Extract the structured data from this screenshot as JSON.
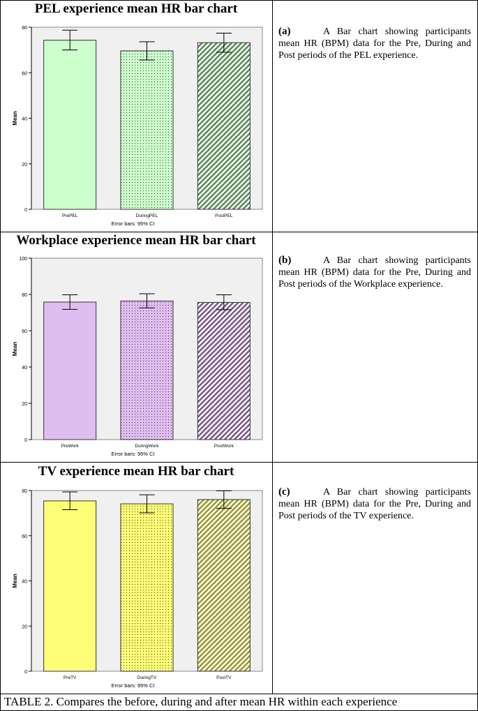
{
  "panels": [
    {
      "title": "PEL experience mean HR bar chart",
      "caption_tag": "(a)",
      "caption_text": "A Bar chart showing participants mean HR (BPM) data for the Pre, During and Post periods of the PEL experience.",
      "chart_data": {
        "type": "bar",
        "categories": [
          "PrePEL",
          "DuringPEL",
          "PostPEL"
        ],
        "values": [
          74.3,
          69.6,
          73.2
        ],
        "ci_low": [
          70.0,
          65.6,
          69.0
        ],
        "ci_high": [
          78.7,
          73.6,
          77.4
        ],
        "ylabel": "Mean",
        "xlabel": "Error bars: 95% CI",
        "ylim": [
          0,
          80
        ],
        "yticks": [
          0,
          20,
          40,
          60,
          80
        ],
        "fills": [
          "solid",
          "dots",
          "hatch"
        ],
        "colors": [
          "#ccffcc",
          "#ccffcc",
          "#5c8a5c"
        ]
      }
    },
    {
      "title": "Workplace experience mean HR bar chart",
      "caption_tag": "(b)",
      "caption_text": "A Bar chart showing participants mean HR (BPM) data for the Pre, During and Post periods of the Workplace experience.",
      "chart_data": {
        "type": "bar",
        "categories": [
          "PreWork",
          "DuringWork",
          "PostWork"
        ],
        "values": [
          75.8,
          76.4,
          75.6
        ],
        "ci_low": [
          71.8,
          72.6,
          71.6
        ],
        "ci_high": [
          79.8,
          80.4,
          79.8
        ],
        "ylabel": "Mean",
        "xlabel": "Error bars: 95% CI",
        "ylim": [
          0,
          100
        ],
        "yticks": [
          0,
          20,
          40,
          60,
          80,
          100
        ],
        "fills": [
          "solid",
          "dots",
          "hatch"
        ],
        "colors": [
          "#e0bdf0",
          "#e0bdf0",
          "#7a5a8a"
        ]
      }
    },
    {
      "title": "TV experience mean HR bar chart",
      "caption_tag": "(c)",
      "caption_text": "A Bar chart showing participants mean HR (BPM) data for the Pre, During and Post periods of the TV experience.",
      "chart_data": {
        "type": "bar",
        "categories": [
          "PreTV",
          "DuringTV",
          "PostTV"
        ],
        "values": [
          75.4,
          74.1,
          76.0
        ],
        "ci_low": [
          71.5,
          70.1,
          72.1
        ],
        "ci_high": [
          79.4,
          78.1,
          79.9
        ],
        "ylabel": "Mean",
        "xlabel": "Error bars: 95% CI",
        "ylim": [
          0,
          80
        ],
        "yticks": [
          0,
          20,
          40,
          60,
          80
        ],
        "fills": [
          "solid",
          "dots",
          "hatch"
        ],
        "colors": [
          "#ffff77",
          "#ffff77",
          "#9a9a2a"
        ]
      }
    }
  ],
  "footer": "TABLE 2. Compares the before, during and after mean HR within each experience"
}
